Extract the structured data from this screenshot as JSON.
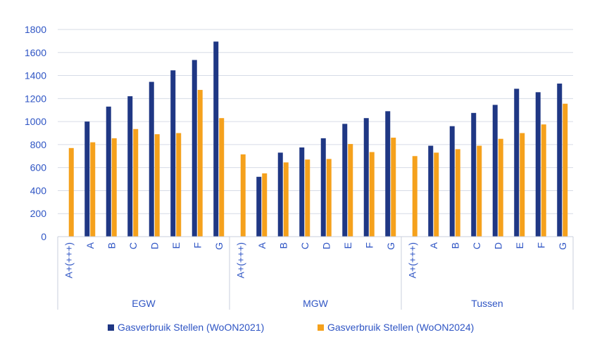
{
  "chart_data": {
    "type": "bar",
    "title": "",
    "xlabel": "",
    "ylabel": "",
    "ylim": [
      0,
      1800
    ],
    "yticks": [
      0,
      200,
      400,
      600,
      800,
      1000,
      1200,
      1400,
      1600,
      1800
    ],
    "grid": true,
    "legend_position": "bottom",
    "groups": [
      {
        "name": "EGW",
        "categories": [
          "A+(+++)",
          "A",
          "B",
          "C",
          "D",
          "E",
          "F",
          "G"
        ]
      },
      {
        "name": "MGW",
        "categories": [
          "A+(+++)",
          "A",
          "B",
          "C",
          "D",
          "E",
          "F",
          "G"
        ]
      },
      {
        "name": "Tussen",
        "categories": [
          "A+(+++)",
          "A",
          "B",
          "C",
          "D",
          "E",
          "F",
          "G"
        ]
      }
    ],
    "series": [
      {
        "name": "Gasverbruik Stellen (WoON2021)",
        "color": "#1f3784",
        "values": [
          null,
          1000,
          1130,
          1220,
          1345,
          1445,
          1535,
          1695,
          null,
          520,
          730,
          775,
          855,
          980,
          1030,
          1090,
          null,
          790,
          960,
          1075,
          1145,
          1285,
          1255,
          1330
        ]
      },
      {
        "name": "Gasverbruik Stellen (WoON2024)",
        "color": "#f5a11c",
        "values": [
          770,
          820,
          855,
          935,
          890,
          900,
          1275,
          1030,
          715,
          550,
          645,
          670,
          675,
          805,
          735,
          860,
          700,
          730,
          760,
          790,
          850,
          900,
          975,
          1155
        ]
      }
    ]
  }
}
